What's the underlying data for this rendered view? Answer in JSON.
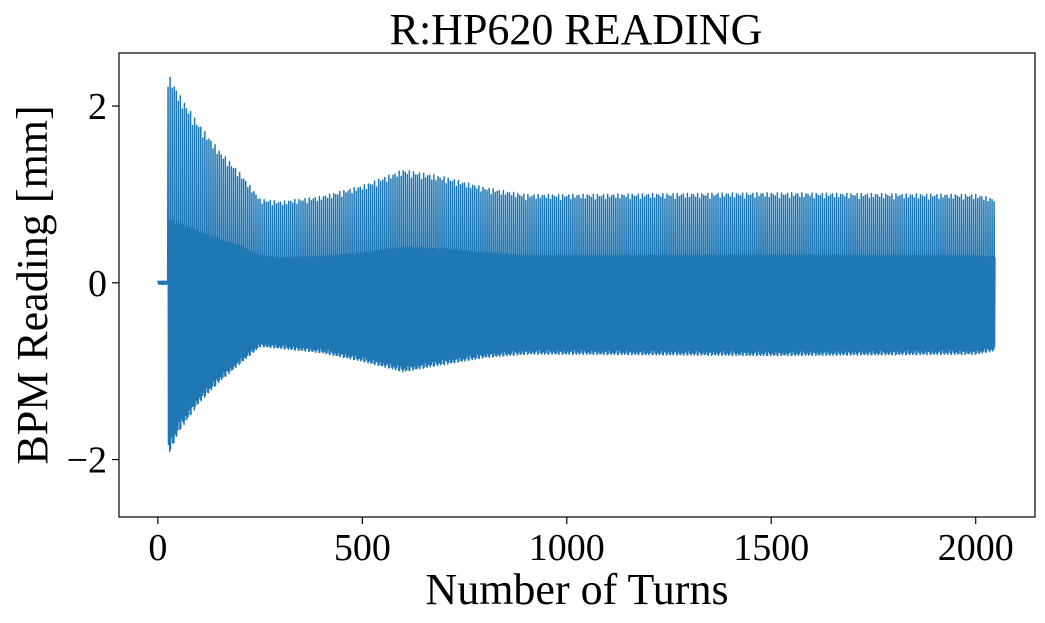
{
  "chart_data": {
    "type": "line",
    "title": "R:HP620 READING",
    "xlabel": "Number of Turns",
    "ylabel": "BPM Reading [mm]",
    "xlim": [
      -95,
      2145
    ],
    "ylim": [
      -2.65,
      2.6
    ],
    "xticks": [
      0,
      500,
      1000,
      1500,
      2000
    ],
    "xtick_labels": [
      "0",
      "500",
      "1000",
      "1500",
      "2000"
    ],
    "yticks": [
      -2,
      0,
      2
    ],
    "ytick_labels": [
      "−2",
      "0",
      "2"
    ],
    "grid": false,
    "series": [
      {
        "color": "#1f77b4",
        "turns": [
          0,
          2048
        ],
        "pre_kick": {
          "x": [
            0,
            25
          ],
          "value": 0.0
        },
        "upper_envelope": {
          "x": [
            25,
            35,
            50,
            100,
            150,
            200,
            250,
            300,
            400,
            500,
            600,
            700,
            800,
            900,
            1000,
            1500,
            2000,
            2048
          ],
          "y": [
            2.35,
            2.3,
            2.15,
            1.8,
            1.5,
            1.25,
            0.95,
            0.92,
            0.98,
            1.1,
            1.28,
            1.2,
            1.08,
            1.0,
            1.0,
            1.02,
            1.0,
            0.95
          ]
        },
        "lower_envelope": {
          "x": [
            25,
            35,
            50,
            100,
            150,
            200,
            250,
            300,
            400,
            500,
            600,
            700,
            800,
            900,
            1000,
            1500,
            2000,
            2048
          ],
          "y": [
            -2.4,
            -2.3,
            -2.1,
            -1.7,
            -1.4,
            -1.15,
            -0.9,
            -0.92,
            -0.98,
            -1.1,
            -1.25,
            -1.15,
            -1.05,
            -1.0,
            -1.0,
            -1.02,
            -1.0,
            -0.95
          ]
        }
      }
    ]
  }
}
